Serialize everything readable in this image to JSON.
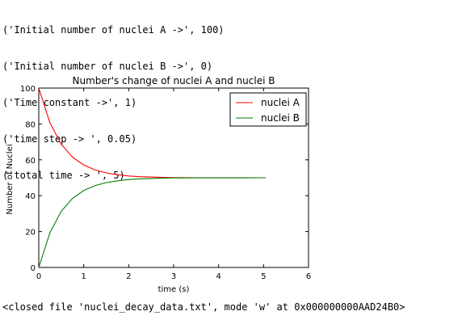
{
  "console": {
    "lines": [
      "('Initial number of nuclei A ->', 100)",
      "('Initial number of nuclei B ->', 0)",
      "('Time constant ->', 1)",
      "('time step -> ', 0.05)",
      "('total time -> ', 5)"
    ],
    "closed_file": "<closed file 'nuclei_decay_data.txt', mode 'w' at 0x000000000AAD24B0>"
  },
  "chart_data": {
    "type": "line",
    "title": "Number's change of nuclei A and nuclei B",
    "xlabel": "time (s)",
    "ylabel": "Number of Nuclei",
    "xlim": [
      0,
      6
    ],
    "ylim": [
      0,
      100
    ],
    "xticks": [
      "0",
      "1",
      "2",
      "3",
      "4",
      "5",
      "6"
    ],
    "yticks": [
      "0",
      "20",
      "40",
      "60",
      "80",
      "100"
    ],
    "grid": false,
    "legend": "top-right",
    "x": [
      0,
      0.25,
      0.5,
      0.75,
      1.0,
      1.25,
      1.5,
      1.75,
      2.0,
      2.25,
      2.5,
      2.75,
      3.0,
      3.5,
      4.0,
      4.5,
      5.0,
      5.05
    ],
    "series": [
      {
        "name": "nuclei A",
        "color": "#ff0000",
        "values": [
          100,
          80.5,
          68.7,
          61.5,
          57.1,
          54.4,
          52.7,
          51.7,
          51.0,
          50.6,
          50.4,
          50.2,
          50.1,
          50.05,
          50.02,
          50.01,
          50.0,
          50.0
        ]
      },
      {
        "name": "nuclei B",
        "color": "#008000",
        "values": [
          0,
          19.5,
          31.3,
          38.5,
          42.9,
          45.6,
          47.3,
          48.3,
          49.0,
          49.4,
          49.6,
          49.8,
          49.9,
          49.95,
          49.98,
          49.99,
          50.0,
          50.0
        ]
      }
    ]
  }
}
